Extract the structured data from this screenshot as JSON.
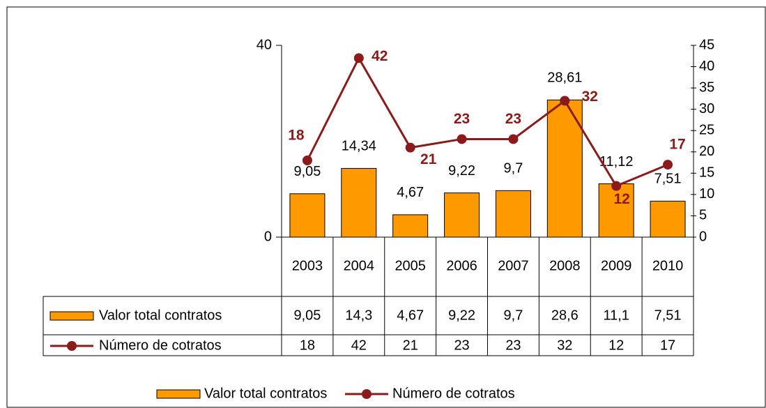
{
  "chart_data": {
    "type": "bar",
    "categories": [
      "2003",
      "2004",
      "2005",
      "2006",
      "2007",
      "2008",
      "2009",
      "2010"
    ],
    "series": [
      {
        "name": "Valor total contratos",
        "type": "bar",
        "color": "#ff9900",
        "values": [
          9.05,
          14.34,
          4.67,
          9.22,
          9.7,
          28.61,
          11.12,
          7.51
        ],
        "value_labels": [
          "9,05",
          "14,34",
          "4,67",
          "9,22",
          "9,7",
          "28,61",
          "11,12",
          "7,51"
        ],
        "table_labels": [
          "9,05",
          "14,3",
          "4,67",
          "9,22",
          "9,7",
          "28,6",
          "11,1",
          "7,51"
        ]
      },
      {
        "name": "Número de cotratos",
        "type": "line",
        "axis": "y2",
        "color": "#8b1a1a",
        "values": [
          18,
          42,
          21,
          23,
          23,
          32,
          12,
          17
        ]
      }
    ],
    "ylim": [
      0,
      40
    ],
    "yticks": [
      0,
      40
    ],
    "y2lim": [
      0,
      45
    ],
    "y2ticks": [
      0,
      5,
      10,
      15,
      20,
      25,
      30,
      35,
      40,
      45
    ],
    "legend": "bottom"
  }
}
